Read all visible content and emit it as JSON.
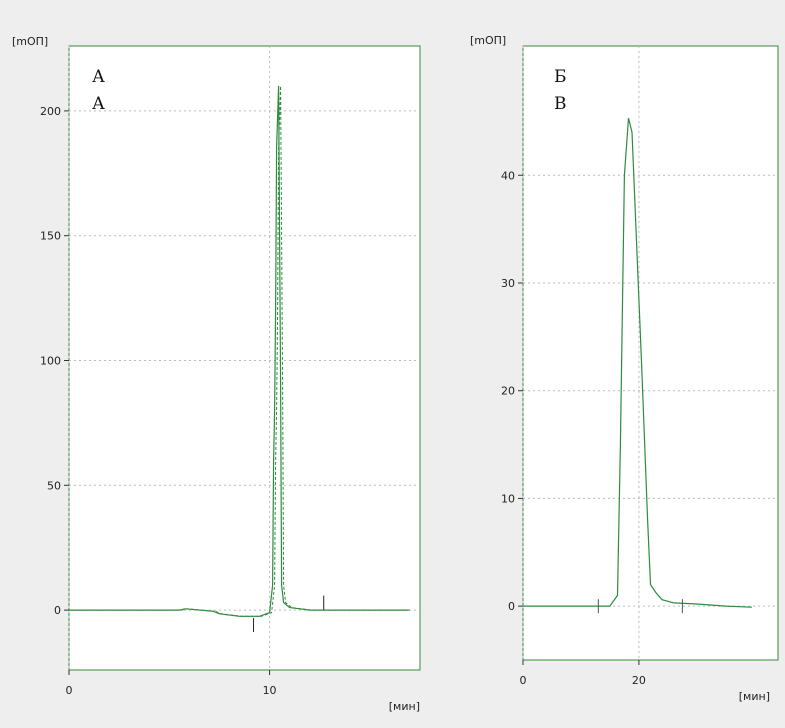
{
  "chart_data": [
    {
      "type": "line",
      "ylabel": "[mОП]",
      "xlabel": "[мин]",
      "panel_labels": [
        "А",
        "А"
      ],
      "xlim": [
        0,
        17.5
      ],
      "ylim": [
        -24,
        226
      ],
      "x_ticks": [
        0,
        10
      ],
      "y_ticks": [
        0,
        50,
        100,
        150,
        200
      ],
      "grid": true,
      "series": [
        {
          "x": [
            0,
            5.5,
            5.8,
            7.2,
            7.5,
            8.5,
            9.5,
            10.0,
            10.15,
            10.2,
            10.25,
            10.3,
            10.35,
            10.45,
            10.55,
            10.6,
            10.7,
            11.0,
            11.5,
            12.0,
            13.0,
            14.0,
            16.9
          ],
          "y": [
            0,
            0,
            0.5,
            -0.5,
            -1.5,
            -2.5,
            -2.5,
            -1.0,
            10,
            60,
            80,
            120,
            185,
            210,
            90,
            10,
            3,
            1,
            0.5,
            0,
            0,
            0,
            0
          ]
        }
      ],
      "markers": [
        {
          "x": 9.2,
          "y": -6
        },
        {
          "x": 12.7,
          "y": 3
        }
      ],
      "colors": {
        "trace": "#2e8b3e",
        "frame": "#3a8a3a"
      }
    },
    {
      "type": "line",
      "ylabel": "[mОП]",
      "xlabel": "[мин]",
      "panel_labels": [
        "Б",
        "В"
      ],
      "xlim": [
        0,
        44
      ],
      "ylim": [
        -5,
        52
      ],
      "x_ticks": [
        0,
        20
      ],
      "y_ticks": [
        0,
        10,
        20,
        30,
        40
      ],
      "grid": true,
      "series": [
        {
          "x": [
            0,
            10,
            15,
            16.3,
            16.8,
            17.5,
            18.2,
            18.8,
            19.5,
            20.5,
            21.5,
            22,
            23,
            24,
            26,
            30,
            35,
            39.5
          ],
          "y": [
            0,
            0,
            0,
            1,
            15,
            40,
            45.3,
            44,
            35,
            22,
            8,
            2,
            1.2,
            0.6,
            0.3,
            0.2,
            0,
            -0.1
          ]
        }
      ],
      "markers": [
        {
          "x": 13,
          "y": 0
        },
        {
          "x": 27.5,
          "y": 0
        }
      ],
      "colors": {
        "trace": "#2e8b3e",
        "frame": "#3a8a3a"
      }
    }
  ]
}
